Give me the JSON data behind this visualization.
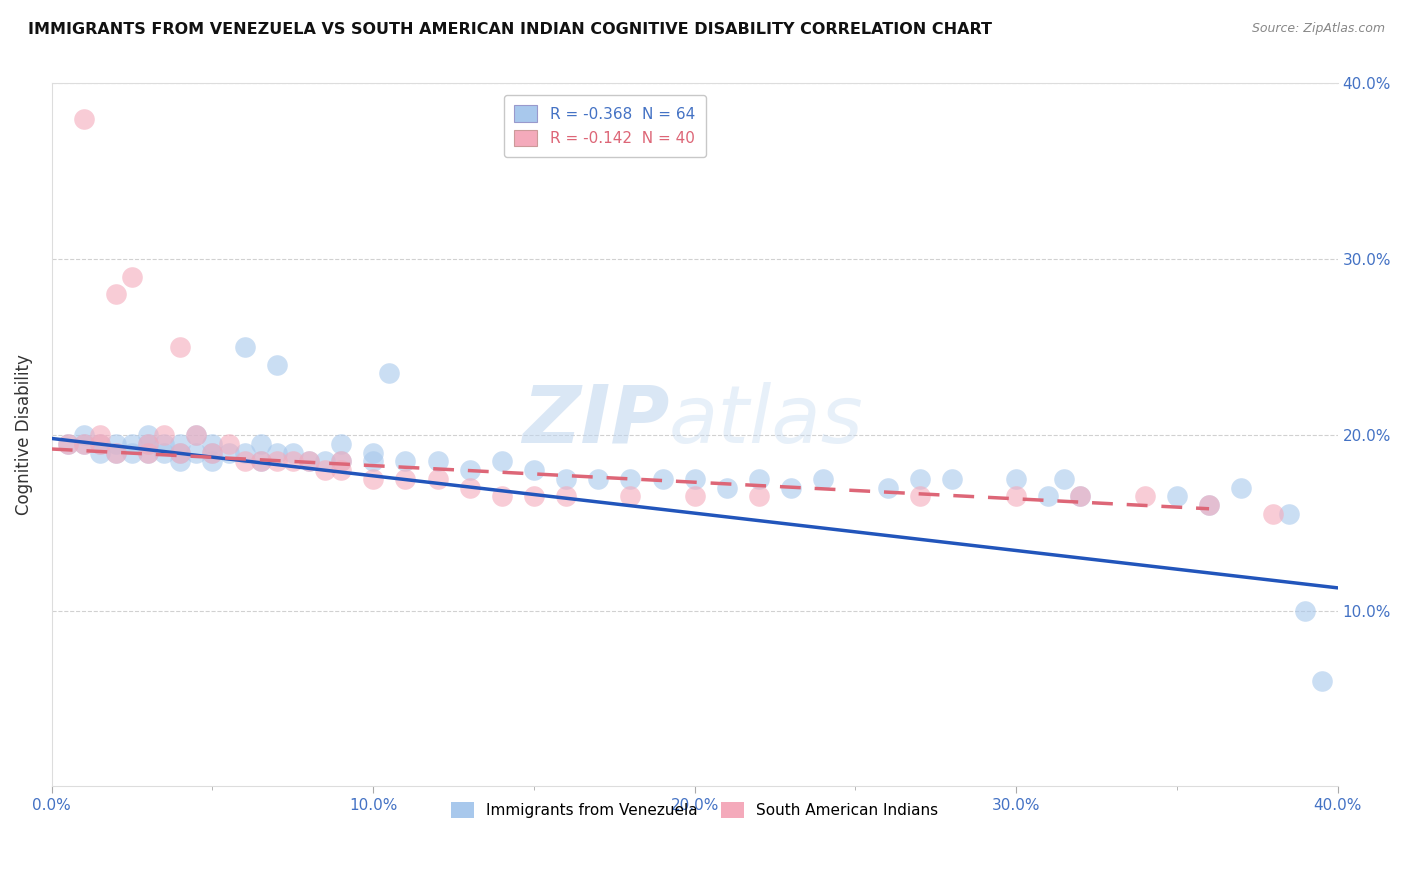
{
  "title": "IMMIGRANTS FROM VENEZUELA VS SOUTH AMERICAN INDIAN COGNITIVE DISABILITY CORRELATION CHART",
  "source": "Source: ZipAtlas.com",
  "ylabel": "Cognitive Disability",
  "xlim": [
    0.0,
    0.4
  ],
  "ylim": [
    0.0,
    0.4
  ],
  "xtick_labels": [
    "0.0%",
    "",
    "10.0%",
    "",
    "20.0%",
    "",
    "30.0%",
    "",
    "40.0%"
  ],
  "xtick_vals": [
    0.0,
    0.05,
    0.1,
    0.15,
    0.2,
    0.25,
    0.3,
    0.35,
    0.4
  ],
  "ytick_labels": [
    "10.0%",
    "20.0%",
    "30.0%",
    "40.0%"
  ],
  "ytick_vals": [
    0.1,
    0.2,
    0.3,
    0.4
  ],
  "legend1_label": "R = -0.368  N = 64",
  "legend2_label": "R = -0.142  N = 40",
  "color_blue": "#A8C8EC",
  "color_pink": "#F4AABB",
  "line_blue": "#2255BB",
  "line_pink": "#DD6677",
  "watermark_zip": "ZIP",
  "watermark_atlas": "atlas",
  "blue_scatter_x": [
    0.005,
    0.01,
    0.01,
    0.015,
    0.015,
    0.02,
    0.02,
    0.025,
    0.025,
    0.03,
    0.03,
    0.03,
    0.035,
    0.035,
    0.04,
    0.04,
    0.04,
    0.045,
    0.045,
    0.05,
    0.05,
    0.05,
    0.055,
    0.06,
    0.06,
    0.065,
    0.065,
    0.07,
    0.07,
    0.075,
    0.08,
    0.085,
    0.09,
    0.09,
    0.1,
    0.1,
    0.105,
    0.11,
    0.12,
    0.13,
    0.14,
    0.15,
    0.16,
    0.17,
    0.18,
    0.19,
    0.2,
    0.21,
    0.22,
    0.23,
    0.24,
    0.26,
    0.27,
    0.28,
    0.3,
    0.31,
    0.315,
    0.32,
    0.35,
    0.36,
    0.37,
    0.385,
    0.39,
    0.395
  ],
  "blue_scatter_y": [
    0.195,
    0.2,
    0.195,
    0.195,
    0.19,
    0.195,
    0.19,
    0.195,
    0.19,
    0.195,
    0.19,
    0.2,
    0.195,
    0.19,
    0.195,
    0.19,
    0.185,
    0.2,
    0.19,
    0.195,
    0.19,
    0.185,
    0.19,
    0.25,
    0.19,
    0.195,
    0.185,
    0.24,
    0.19,
    0.19,
    0.185,
    0.185,
    0.195,
    0.185,
    0.19,
    0.185,
    0.235,
    0.185,
    0.185,
    0.18,
    0.185,
    0.18,
    0.175,
    0.175,
    0.175,
    0.175,
    0.175,
    0.17,
    0.175,
    0.17,
    0.175,
    0.17,
    0.175,
    0.175,
    0.175,
    0.165,
    0.175,
    0.165,
    0.165,
    0.16,
    0.17,
    0.155,
    0.1,
    0.06
  ],
  "pink_scatter_x": [
    0.005,
    0.01,
    0.01,
    0.015,
    0.015,
    0.02,
    0.02,
    0.025,
    0.03,
    0.03,
    0.035,
    0.04,
    0.04,
    0.045,
    0.05,
    0.055,
    0.06,
    0.065,
    0.07,
    0.075,
    0.08,
    0.085,
    0.09,
    0.09,
    0.1,
    0.11,
    0.12,
    0.13,
    0.14,
    0.15,
    0.16,
    0.18,
    0.2,
    0.22,
    0.27,
    0.3,
    0.32,
    0.34,
    0.36,
    0.38
  ],
  "pink_scatter_y": [
    0.195,
    0.38,
    0.195,
    0.195,
    0.2,
    0.28,
    0.19,
    0.29,
    0.195,
    0.19,
    0.2,
    0.25,
    0.19,
    0.2,
    0.19,
    0.195,
    0.185,
    0.185,
    0.185,
    0.185,
    0.185,
    0.18,
    0.185,
    0.18,
    0.175,
    0.175,
    0.175,
    0.17,
    0.165,
    0.165,
    0.165,
    0.165,
    0.165,
    0.165,
    0.165,
    0.165,
    0.165,
    0.165,
    0.16,
    0.155
  ],
  "blue_line_x": [
    0.0,
    0.4
  ],
  "blue_line_y": [
    0.198,
    0.113
  ],
  "pink_line_x": [
    0.0,
    0.36
  ],
  "pink_line_y": [
    0.192,
    0.158
  ],
  "grid_color": "#CCCCCC",
  "background_color": "#FFFFFF"
}
